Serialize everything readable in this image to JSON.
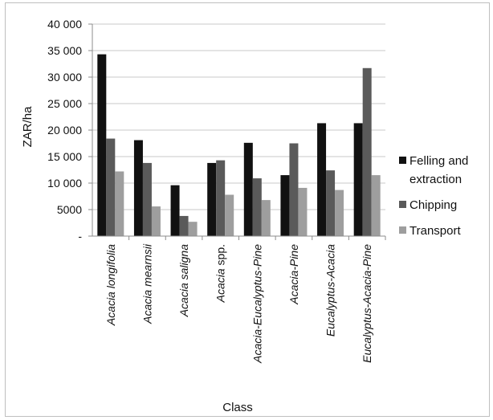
{
  "chart_data": {
    "type": "bar",
    "title": "",
    "xlabel": "Class",
    "ylabel": "ZAR/ha",
    "ylim": [
      0,
      40000
    ],
    "yticks": [
      {
        "value": 0,
        "label": "-"
      },
      {
        "value": 5000,
        "label": "5000"
      },
      {
        "value": 10000,
        "label": "10 000"
      },
      {
        "value": 15000,
        "label": "15 000"
      },
      {
        "value": 20000,
        "label": "20 000"
      },
      {
        "value": 25000,
        "label": "25 000"
      },
      {
        "value": 30000,
        "label": "30 000"
      },
      {
        "value": 35000,
        "label": "35 000"
      },
      {
        "value": 40000,
        "label": "40 000"
      }
    ],
    "grid": true,
    "legend_position": "right",
    "categories": [
      {
        "italic": "Acacia longifolia",
        "roman": ""
      },
      {
        "italic": "Acacia mearnsii",
        "roman": ""
      },
      {
        "italic": "Acacia saligna",
        "roman": ""
      },
      {
        "italic": "Acacia",
        "roman": " spp."
      },
      {
        "italic": "Acacia-Eucalyptus-Pine",
        "roman": ""
      },
      {
        "italic": "Acacia-Pine",
        "roman": ""
      },
      {
        "italic": "Eucalyptus-Acacia",
        "roman": ""
      },
      {
        "italic": "Eucalyptus-Acacia-Pine",
        "roman": ""
      }
    ],
    "series": [
      {
        "name": "Felling and extraction",
        "legend_lines": [
          "Felling and",
          "extraction"
        ],
        "color": "#111111",
        "values": [
          34300,
          18100,
          9600,
          13800,
          17600,
          11500,
          21300,
          21300
        ]
      },
      {
        "name": "Chipping",
        "legend_lines": [
          "Chipping"
        ],
        "color": "#5a5a5a",
        "values": [
          18400,
          13800,
          3800,
          14300,
          10900,
          17500,
          12400,
          31700
        ]
      },
      {
        "name": "Transport",
        "legend_lines": [
          "Transport"
        ],
        "color": "#9e9e9e",
        "values": [
          12200,
          5600,
          2700,
          7800,
          6800,
          9100,
          8700,
          11500
        ]
      }
    ]
  }
}
